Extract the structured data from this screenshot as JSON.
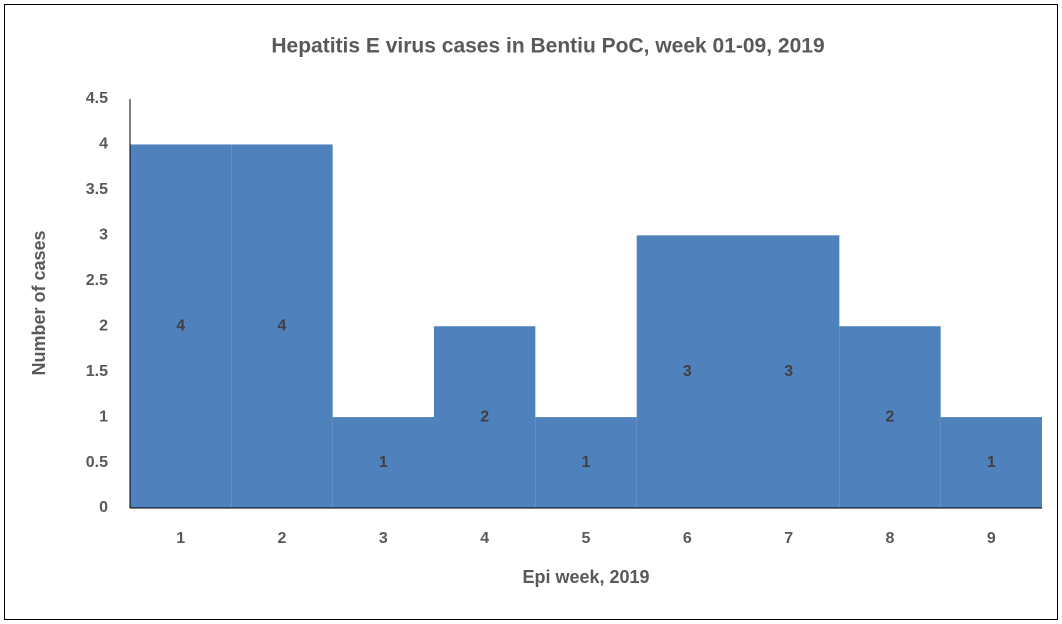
{
  "chart_data": {
    "type": "bar",
    "title": "Hepatitis E virus cases in Bentiu PoC, week 01-09, 2019",
    "x_label": "Epi week, 2019",
    "y_label": "Number of cases",
    "categories": [
      "1",
      "2",
      "3",
      "4",
      "5",
      "6",
      "7",
      "8",
      "9"
    ],
    "values": [
      4,
      4,
      1,
      2,
      1,
      3,
      3,
      2,
      1
    ],
    "color": "#4f81bd",
    "ylim": [
      0,
      4.5
    ],
    "yticks": [
      0,
      0.5,
      1,
      1.5,
      2,
      2.5,
      3,
      3.5,
      4,
      4.5
    ],
    "grid": false,
    "data_labels": true
  }
}
